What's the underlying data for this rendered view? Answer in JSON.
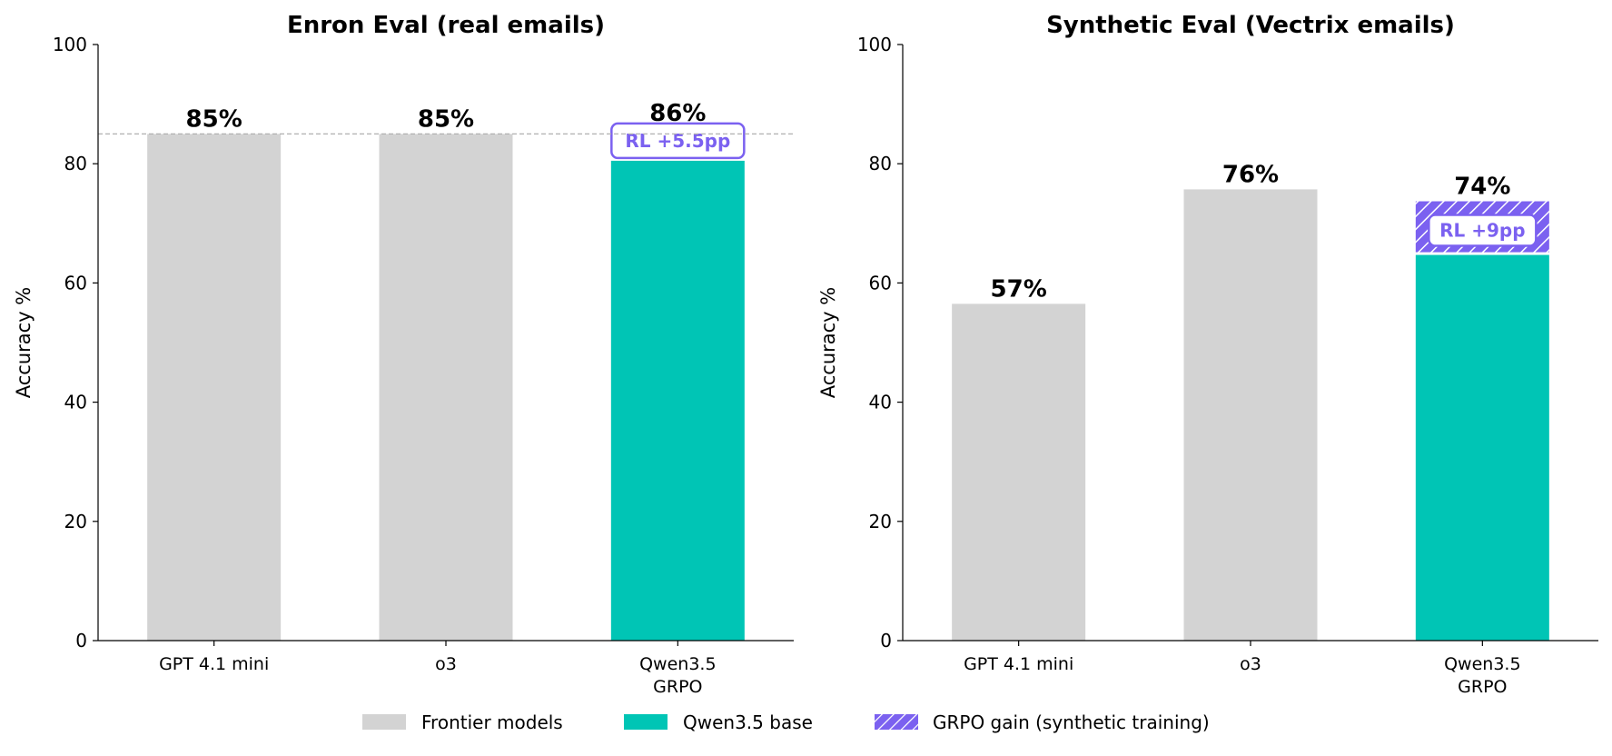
{
  "colors": {
    "frontier": "#d3d3d3",
    "base": "#00c5b5",
    "gain": "#7b61f0",
    "reference_line": "#b0b0b0",
    "rl_badge_fill": "#ffffff"
  },
  "legend": {
    "placement": "bottom-center",
    "items": [
      {
        "label": "Frontier models",
        "kind": "frontier"
      },
      {
        "label": "Qwen3.5 base",
        "kind": "base"
      },
      {
        "label": "GRPO gain (synthetic training)",
        "kind": "gain"
      }
    ]
  },
  "chart_data": [
    {
      "type": "bar",
      "title": "Enron Eval (real emails)",
      "ylabel": "Accuracy %",
      "xlabel": "",
      "ylim": [
        0,
        100
      ],
      "yticks": [
        0,
        20,
        40,
        60,
        80,
        100
      ],
      "reference_line": 85,
      "categories": [
        {
          "lines": [
            "GPT 4.1 mini"
          ]
        },
        {
          "lines": [
            "o3"
          ]
        },
        {
          "lines": [
            "Qwen3.5",
            "GRPO"
          ]
        }
      ],
      "bars": [
        {
          "kind": "frontier",
          "value": 85,
          "label": "85%"
        },
        {
          "kind": "frontier",
          "value": 85,
          "label": "85%"
        },
        {
          "kind": "stacked",
          "base": 80.5,
          "gain": 5.5,
          "total": 86,
          "label": "86%",
          "gain_label": "RL +5.5pp",
          "gain_style": "badge-above"
        }
      ]
    },
    {
      "type": "bar",
      "title": "Synthetic Eval (Vectrix emails)",
      "ylabel": "Accuracy %",
      "xlabel": "",
      "ylim": [
        0,
        100
      ],
      "yticks": [
        0,
        20,
        40,
        60,
        80,
        100
      ],
      "categories": [
        {
          "lines": [
            "GPT 4.1 mini"
          ]
        },
        {
          "lines": [
            "o3"
          ]
        },
        {
          "lines": [
            "Qwen3.5",
            "GRPO"
          ]
        }
      ],
      "bars": [
        {
          "kind": "frontier",
          "value": 56.5,
          "label": "57%"
        },
        {
          "kind": "frontier",
          "value": 75.7,
          "label": "76%"
        },
        {
          "kind": "stacked",
          "base": 64.7,
          "gain": 9,
          "total": 73.7,
          "label": "74%",
          "gain_label": "RL +9pp",
          "gain_style": "hatched-segment"
        }
      ]
    }
  ]
}
